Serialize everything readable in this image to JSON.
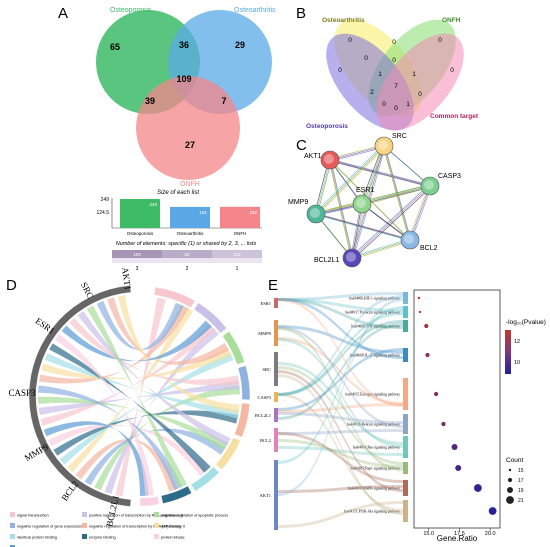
{
  "panels": {
    "A": {
      "letter": "A",
      "sets": [
        {
          "name": "Osteoporosis",
          "color": "#3dbb67"
        },
        {
          "name": "Osteoarthritis",
          "color": "#5aa9e6"
        },
        {
          "name": "ONFH",
          "color": "#f4868a"
        }
      ],
      "venn_values": {
        "a_only": "65",
        "ab": "36",
        "b_only": "29",
        "abc": "109",
        "ac": "39",
        "bc": "7",
        "c_only": "27"
      },
      "bar_title": "Size of each list",
      "bar_ticks": [
        "249",
        "124.5",
        "0"
      ],
      "bars": [
        {
          "label": "Osteoporosis",
          "value": 249,
          "value_label": "249",
          "color": "#3dbb67"
        },
        {
          "label": "Osteoarthritis",
          "value": 181,
          "value_label": "181",
          "color": "#5aa9e6"
        },
        {
          "label": "ONFH",
          "value": 182,
          "value_label": "182",
          "color": "#f4868a"
        }
      ],
      "elem_title": "Number of elements: specific (1) or shared by 2, 3, ... lists",
      "elem_cells": [
        {
          "value": "109",
          "tier": "3"
        },
        {
          "value": "82",
          "tier": "2"
        },
        {
          "value": "121",
          "tier": "1"
        }
      ]
    },
    "B": {
      "letter": "B",
      "set_labels": [
        "Osteoarthritis",
        "ONFH",
        "Osteoporosis",
        "Common target"
      ],
      "values": [
        "0",
        "0",
        "0",
        "0",
        "0",
        "0",
        "2",
        "1",
        "7",
        "1",
        "0",
        "0",
        "0",
        "1",
        "0"
      ]
    },
    "C": {
      "letter": "C",
      "nodes": [
        "AKT1",
        "SRC",
        "CASP3",
        "ESR1",
        "MMP9",
        "BCL2",
        "BCL2L1"
      ]
    },
    "D": {
      "letter": "D",
      "genes": [
        "AKT1",
        "SRC",
        "ESR1",
        "CASP3",
        "MMP9",
        "BCL2",
        "BCL2L1"
      ],
      "legend": [
        {
          "label": "signal transduction",
          "color": "#f7c6cf"
        },
        {
          "label": "positive regulation of transcription by RNA polymerase II",
          "color": "#c9c1e8"
        },
        {
          "label": "negative regulation of apoptotic process",
          "color": "#a8dd9a"
        },
        {
          "label": "negative regulation of gene expression",
          "color": "#8fb1e0"
        },
        {
          "label": "negative regulation of transcription by RNA polymerase II",
          "color": "#f4b7a2"
        },
        {
          "label": "ATP binding",
          "color": "#f6dfa0"
        },
        {
          "label": "identical protein binding",
          "color": "#a4dfe8"
        },
        {
          "label": "enzyme binding",
          "color": "#2d6b8a"
        },
        {
          "label": "protein kinase",
          "color": "#f8d0e0"
        },
        {
          "label": "protein binding",
          "color": "#5b9bd5"
        }
      ]
    },
    "E": {
      "letter": "E",
      "genes": [
        "ESR1",
        "MMP9",
        "SRC",
        "CASP3",
        "BCL2L1",
        "BCL2",
        "AKT1"
      ],
      "pathways": [
        "hsa04066:HIF-1 signaling pathway",
        "hsa04917:Prolactin signaling pathway",
        "hsa04668:TNF signaling pathway",
        "hsa04668:IL-17 signaling pathway",
        "hsa04915:Estrogen signaling pathway",
        "hsa04926:Relaxin signaling pathway",
        "hsa04014:Ras signaling pathway",
        "hsa04015:Rap1 signaling pathway",
        "hsa04010:MAPK signaling pathway",
        "hsa04151:PI3K-Akt signaling pathway"
      ],
      "dots": [
        {
          "x": 14.2,
          "p": 13.5,
          "count": 15
        },
        {
          "x": 14.3,
          "p": 13.3,
          "count": 15
        },
        {
          "x": 14.8,
          "p": 12.6,
          "count": 17
        },
        {
          "x": 14.9,
          "p": 12.2,
          "count": 17
        },
        {
          "x": 15.6,
          "p": 11.8,
          "count": 17
        },
        {
          "x": 16.2,
          "p": 11.2,
          "count": 17
        },
        {
          "x": 17.1,
          "p": 10.4,
          "count": 19
        },
        {
          "x": 17.4,
          "p": 10.0,
          "count": 19
        },
        {
          "x": 19.0,
          "p": 9.6,
          "count": 21
        },
        {
          "x": 20.2,
          "p": 9.3,
          "count": 21
        }
      ],
      "xlabel": "Gene.Ratio",
      "xticks": [
        15.0,
        17.5,
        20.0
      ],
      "xtick_labels": [
        "15.0",
        "17.5",
        "20.0"
      ],
      "xlim": [
        13.8,
        20.8
      ],
      "color_title": "-log₁₀(Pvalue)",
      "color_ticks": [
        "12",
        "10"
      ],
      "size_title": "Count",
      "size_legend": [
        {
          "label": "15",
          "count": 15
        },
        {
          "label": "17",
          "count": 17
        },
        {
          "label": "19",
          "count": 19
        },
        {
          "label": "21",
          "count": 21
        }
      ]
    }
  }
}
